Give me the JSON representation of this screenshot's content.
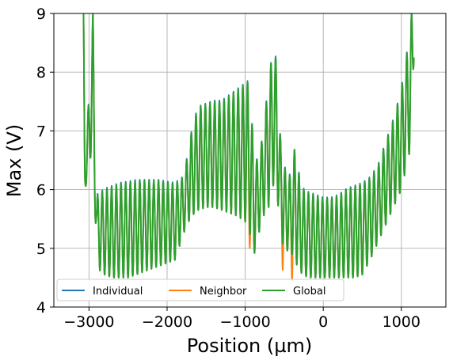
{
  "chart_data": {
    "type": "line",
    "xlabel": "Position (µm)",
    "ylabel": "Max (V)",
    "xlim": [
      -3450,
      1570
    ],
    "ylim": [
      4,
      9
    ],
    "xticks": [
      -3000,
      -2000,
      -1000,
      0,
      1000
    ],
    "xtick_labels": [
      "−3000",
      "−2000",
      "−1000",
      "0",
      "1000"
    ],
    "yticks": [
      4,
      5,
      6,
      7,
      8,
      9
    ],
    "ytick_labels": [
      "4",
      "5",
      "6",
      "7",
      "8",
      "9"
    ],
    "grid": true,
    "legend_position": "lower-left",
    "legend_columns": 3,
    "series": [
      {
        "name": "Individual",
        "color": "#1f77b4"
      },
      {
        "name": "Neighbor",
        "color": "#ff7f0e"
      },
      {
        "name": "Global",
        "color": "#2ca02c"
      }
    ],
    "envelope": {
      "x": [
        -3070,
        -3050,
        -3020,
        -2950,
        -2900,
        -2850,
        -2800,
        -2700,
        -2600,
        -2500,
        -2400,
        -2300,
        -2200,
        -2100,
        -2000,
        -1900,
        -1800,
        -1750,
        -1700,
        -1650,
        -1600,
        -1500,
        -1400,
        -1300,
        -1200,
        -1100,
        -1000,
        -950,
        -900,
        -850,
        -800,
        -750,
        -700,
        -650,
        -620,
        -600,
        -550,
        -500,
        -450,
        -400,
        -350,
        -300,
        -250,
        -200,
        -100,
        0,
        100,
        200,
        300,
        400,
        500,
        600,
        700,
        800,
        900,
        1000,
        1050,
        1100,
        1130,
        1160
      ],
      "upper": [
        9.0,
        6.5,
        7.1,
        9.0,
        5.9,
        5.95,
        6.0,
        6.05,
        6.1,
        6.12,
        6.15,
        6.15,
        6.15,
        6.15,
        6.12,
        6.1,
        6.2,
        6.5,
        6.9,
        7.2,
        7.4,
        7.45,
        7.5,
        7.5,
        7.6,
        7.7,
        7.8,
        7.85,
        6.9,
        6.5,
        6.7,
        7.2,
        7.9,
        8.3,
        8.3,
        8.2,
        6.9,
        6.4,
        6.2,
        6.3,
        6.9,
        6.1,
        6.0,
        5.95,
        5.9,
        5.85,
        5.85,
        5.9,
        6.0,
        6.05,
        6.1,
        6.2,
        6.4,
        6.8,
        7.2,
        7.7,
        8.2,
        8.5,
        9.0,
        9.0
      ],
      "lower": [
        5.4,
        6.0,
        6.2,
        6.8,
        4.7,
        4.6,
        4.55,
        4.5,
        4.5,
        4.5,
        4.55,
        4.6,
        4.65,
        4.7,
        4.75,
        4.8,
        5.2,
        5.4,
        5.5,
        5.6,
        5.65,
        5.7,
        5.7,
        5.65,
        5.6,
        5.55,
        5.45,
        5.35,
        4.8,
        5.1,
        5.4,
        5.6,
        5.7,
        6.0,
        6.2,
        6.1,
        5.2,
        5.0,
        4.95,
        4.9,
        4.75,
        4.6,
        4.55,
        4.5,
        4.5,
        4.5,
        4.5,
        4.5,
        4.5,
        4.5,
        4.55,
        4.8,
        5.1,
        5.4,
        5.7,
        6.0,
        6.3,
        6.6,
        6.8,
        8.25
      ]
    }
  }
}
